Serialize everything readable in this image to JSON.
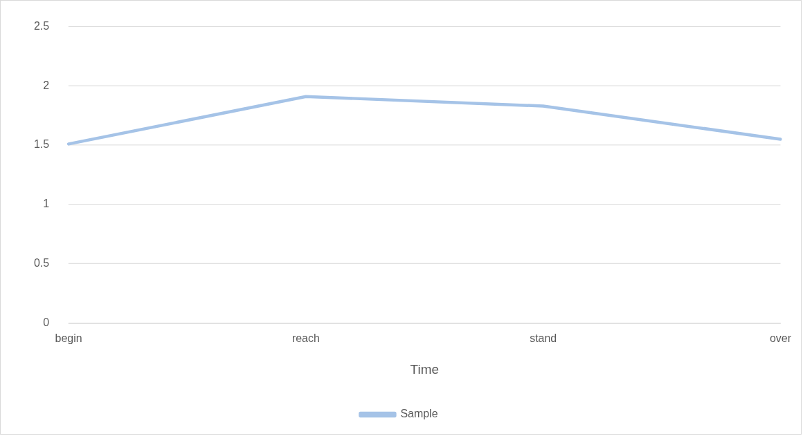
{
  "chart_data": {
    "type": "line",
    "xlabel": "Time",
    "categories": [
      "begin",
      "reach",
      "stand",
      "over"
    ],
    "series": [
      {
        "name": "Sample",
        "color": "#a5c3e7",
        "values": [
          1.51,
          1.91,
          1.83,
          1.55
        ]
      }
    ],
    "ylim": [
      0,
      2.5
    ],
    "yticks": [
      0,
      0.5,
      1,
      1.5,
      2,
      2.5
    ],
    "grid": "y",
    "legend": "bottom",
    "marker": "none",
    "line_style": "solid"
  }
}
